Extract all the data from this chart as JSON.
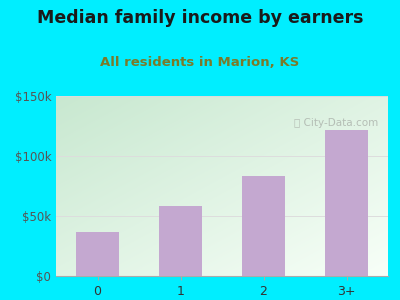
{
  "title": "Median family income by earners",
  "subtitle": "All residents in Marion, KS",
  "categories": [
    "0",
    "1",
    "2",
    "3+"
  ],
  "values": [
    37000,
    58000,
    83000,
    122000
  ],
  "bar_color": "#c4a8d0",
  "title_fontsize": 12.5,
  "subtitle_fontsize": 9.5,
  "subtitle_color": "#7a7a2a",
  "title_color": "#1a1a1a",
  "background_outer": "#00eeff",
  "background_inner_top_left": "#c8e8d0",
  "background_inner_bottom_right": "#f8fff8",
  "ylim": [
    0,
    150000
  ],
  "yticks": [
    0,
    50000,
    100000,
    150000
  ],
  "ytick_labels": [
    "$0",
    "$50k",
    "$100k",
    "$150k"
  ],
  "watermark": "City-Data.com",
  "grid_color": "#dddddd"
}
